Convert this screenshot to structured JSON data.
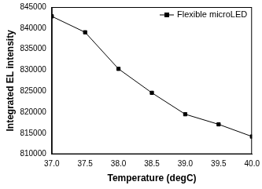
{
  "chart_data": {
    "type": "line",
    "x_label": "Temperature (degC)",
    "y_label": "Integrated EL intensity",
    "x": [
      37.0,
      37.5,
      38.0,
      38.5,
      39.0,
      39.5,
      40.0
    ],
    "series": [
      {
        "name": "Flexible microLED",
        "color": "#000000",
        "marker": "square",
        "line_style": "solid",
        "values": [
          842800,
          839000,
          830300,
          824600,
          819500,
          817100,
          814200
        ]
      }
    ],
    "xlim": [
      37.0,
      40.0
    ],
    "xticks": [
      {
        "value": 37,
        "label": "37.0"
      },
      37.5,
      {
        "value": 38,
        "label": "38.0"
      },
      38.5,
      {
        "value": 39,
        "label": "39.0"
      },
      39.5,
      {
        "value": 40,
        "label": "40.0"
      }
    ],
    "ylim": [
      810000,
      845000
    ],
    "yticks": [
      810000,
      815000,
      820000,
      825000,
      830000,
      835000,
      840000,
      845000
    ],
    "grid": false,
    "legend": "upper right"
  }
}
